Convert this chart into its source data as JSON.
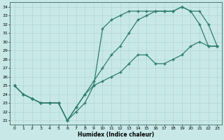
{
  "xlabel": "Humidex (Indice chaleur)",
  "bg_color": "#c8e8e8",
  "line_color": "#2e7d6e",
  "grid_color": "#b0d4d0",
  "xlim": [
    -0.5,
    23.5
  ],
  "ylim": [
    20.5,
    34.5
  ],
  "yticks": [
    21,
    22,
    23,
    24,
    25,
    26,
    27,
    28,
    29,
    30,
    31,
    32,
    33,
    34
  ],
  "xticks": [
    0,
    1,
    2,
    3,
    4,
    5,
    6,
    7,
    8,
    9,
    10,
    11,
    12,
    13,
    14,
    15,
    16,
    17,
    18,
    19,
    20,
    21,
    22,
    23
  ],
  "series1_x": [
    0,
    1,
    2,
    3,
    4,
    5,
    6,
    7,
    8,
    9,
    10,
    11,
    12,
    13,
    14,
    15,
    16,
    17,
    18,
    19,
    20,
    21,
    22,
    23
  ],
  "series1_y": [
    25.0,
    24.0,
    23.5,
    23.0,
    23.0,
    23.0,
    21.0,
    22.5,
    24.0,
    25.0,
    25.5,
    26.0,
    26.5,
    27.5,
    28.5,
    28.5,
    27.5,
    27.5,
    28.0,
    28.5,
    29.5,
    30.0,
    29.5,
    29.5
  ],
  "series2_x": [
    0,
    1,
    2,
    3,
    4,
    5,
    6,
    7,
    8,
    9,
    10,
    11,
    12,
    13,
    14,
    15,
    16,
    17,
    18,
    19,
    20,
    21,
    22,
    23
  ],
  "series2_y": [
    25.0,
    24.0,
    23.5,
    23.0,
    23.0,
    23.0,
    21.0,
    22.5,
    24.0,
    25.5,
    27.0,
    28.5,
    29.5,
    31.0,
    32.5,
    33.0,
    33.5,
    33.5,
    33.5,
    34.0,
    33.5,
    33.5,
    32.0,
    29.5
  ],
  "series3_x": [
    0,
    1,
    2,
    3,
    4,
    5,
    6,
    7,
    8,
    9,
    10,
    11,
    12,
    13,
    14,
    15,
    16,
    17,
    18,
    19,
    20,
    21,
    22,
    23
  ],
  "series3_y": [
    25.0,
    24.0,
    23.5,
    23.0,
    23.0,
    23.0,
    21.0,
    22.0,
    23.0,
    25.0,
    31.5,
    32.5,
    33.0,
    33.5,
    33.5,
    33.5,
    33.5,
    33.5,
    33.5,
    34.0,
    33.5,
    32.0,
    29.5,
    29.5
  ]
}
